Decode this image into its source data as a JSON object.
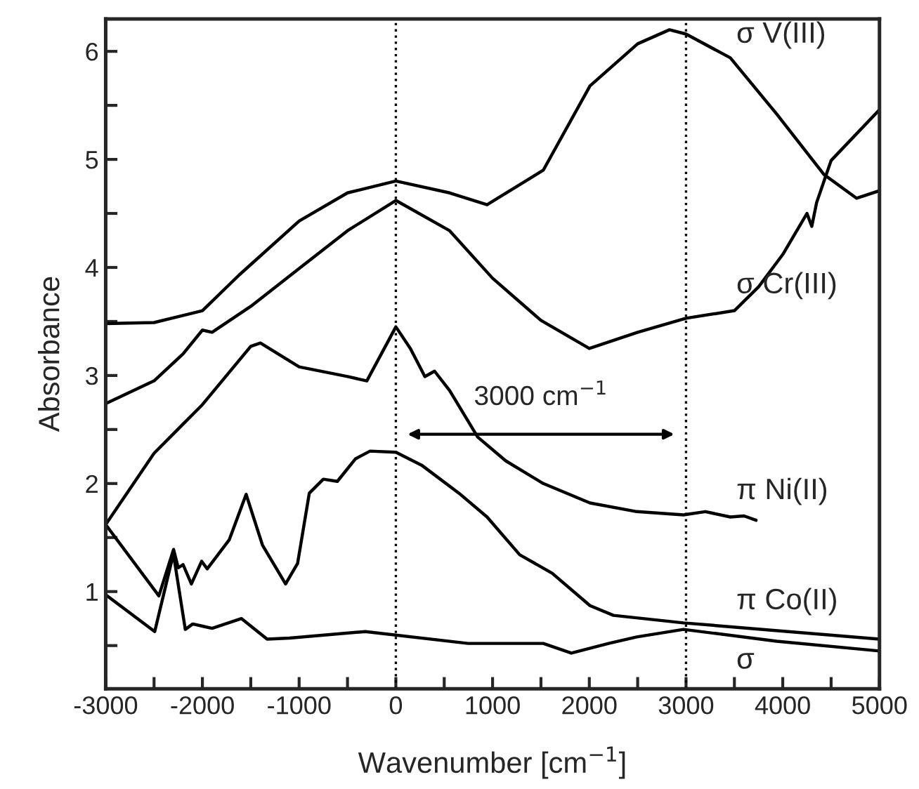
{
  "chart_data": {
    "type": "line",
    "xlabel": "Wavenumber [cm$^{−1}$]",
    "ylabel": "Absorbance",
    "xlim": [
      -3000,
      5000
    ],
    "ylim": [
      0.1,
      6.3
    ],
    "xticks": [
      -3000,
      {
        "value": -2500,
        "label": null
      },
      -2000,
      {
        "value": -1500,
        "label": null
      },
      -1000,
      {
        "value": -500,
        "label": null
      },
      0,
      {
        "value": 500,
        "label": null
      },
      1000,
      {
        "value": 1500,
        "label": null
      },
      2000,
      {
        "value": 2500,
        "label": null
      },
      3000,
      {
        "value": 3500,
        "label": null
      },
      4000,
      {
        "value": 4500,
        "label": null
      },
      5000
    ],
    "yticks": [
      {
        "value": 0.5,
        "label": null
      },
      1,
      {
        "value": 1.5,
        "label": null
      },
      2,
      {
        "value": 2.5,
        "label": null
      },
      3,
      {
        "value": 3.5,
        "label": null
      },
      4,
      {
        "value": 4.5,
        "label": null
      },
      5,
      {
        "value": 5.5,
        "label": null
      },
      6
    ],
    "grid": false,
    "marker": "none",
    "line_style": "solid",
    "series": [
      {
        "name": "σ V(III)",
        "color": "#000000",
        "x": [
          -3000,
          -2500,
          -2000,
          -1620,
          -1000,
          -500,
          0,
          556,
          943,
          1524,
          2007,
          2500,
          2829,
          3000,
          3458,
          3937,
          4426,
          4764,
          5000
        ],
        "values": [
          3.48,
          3.49,
          3.6,
          3.93,
          4.43,
          4.69,
          4.8,
          4.69,
          4.58,
          4.9,
          5.68,
          6.07,
          6.2,
          6.16,
          5.94,
          5.42,
          4.86,
          4.64,
          4.71
        ]
      },
      {
        "name": "σ Cr(III)",
        "color": "#000000",
        "x": [
          -3000,
          -2500,
          -2200,
          -2000,
          -1900,
          -1500,
          -1000,
          -500,
          0,
          556,
          1000,
          1500,
          2000,
          2500,
          3000,
          3500,
          3750,
          4000,
          4250,
          4300,
          4350,
          4500,
          5000
        ],
        "values": [
          2.74,
          2.95,
          3.2,
          3.42,
          3.4,
          3.64,
          3.99,
          4.34,
          4.62,
          4.34,
          3.9,
          3.51,
          3.25,
          3.4,
          3.53,
          3.6,
          3.82,
          4.12,
          4.5,
          4.38,
          4.6,
          4.99,
          5.46
        ]
      },
      {
        "name": "π Ni(II)",
        "color": "#000000",
        "x": [
          -3000,
          -2500,
          -2000,
          -1750,
          -1500,
          -1400,
          -1000,
          -500,
          -300,
          -150,
          0,
          150,
          300,
          400,
          556,
          846,
          1136,
          1524,
          2007,
          2490,
          2974,
          3200,
          3458,
          3600,
          3724
        ],
        "values": [
          1.62,
          2.28,
          2.73,
          3.0,
          3.27,
          3.3,
          3.08,
          2.99,
          2.95,
          3.2,
          3.45,
          3.25,
          2.99,
          3.04,
          2.86,
          2.43,
          2.21,
          2.0,
          1.82,
          1.74,
          1.71,
          1.74,
          1.69,
          1.7,
          1.66
        ]
      },
      {
        "name": "π Co(II)",
        "color": "#000000",
        "x": [
          -3000,
          -2450,
          -2298,
          -2250,
          -2200,
          -2114,
          -2008,
          -1950,
          -1722,
          -1548,
          -1379,
          -1140,
          -1016,
          -895,
          -750,
          -605,
          -416,
          -267,
          0,
          266,
          653,
          943,
          1281,
          1616,
          2007,
          2249,
          2974,
          5000
        ],
        "values": [
          1.62,
          0.96,
          1.39,
          1.22,
          1.25,
          1.07,
          1.28,
          1.21,
          1.48,
          1.9,
          1.43,
          1.07,
          1.26,
          1.91,
          2.04,
          2.02,
          2.23,
          2.3,
          2.29,
          2.17,
          1.91,
          1.69,
          1.34,
          1.17,
          0.87,
          0.78,
          0.71,
          0.56
        ]
      },
      {
        "name": "σ",
        "color": "#000000",
        "x": [
          -3000,
          -2493,
          -2300,
          -2177,
          -2100,
          -2000,
          -1900,
          -1596,
          -1331,
          -1100,
          -315,
          747,
          1524,
          1814,
          2200,
          2490,
          2974,
          3937,
          5000
        ],
        "values": [
          0.97,
          0.63,
          1.35,
          0.65,
          0.7,
          0.68,
          0.66,
          0.75,
          0.56,
          0.57,
          0.63,
          0.52,
          0.52,
          0.43,
          0.52,
          0.58,
          0.65,
          0.54,
          0.45
        ]
      }
    ],
    "ref_lines": [
      {
        "axis": "x",
        "value": 0,
        "line_style": "dotted",
        "color": "#000000"
      },
      {
        "axis": "x",
        "value": 3000,
        "line_style": "dotted",
        "color": "#000000"
      }
    ],
    "annotations": [
      "3000 cm$^{−1}$"
    ]
  }
}
